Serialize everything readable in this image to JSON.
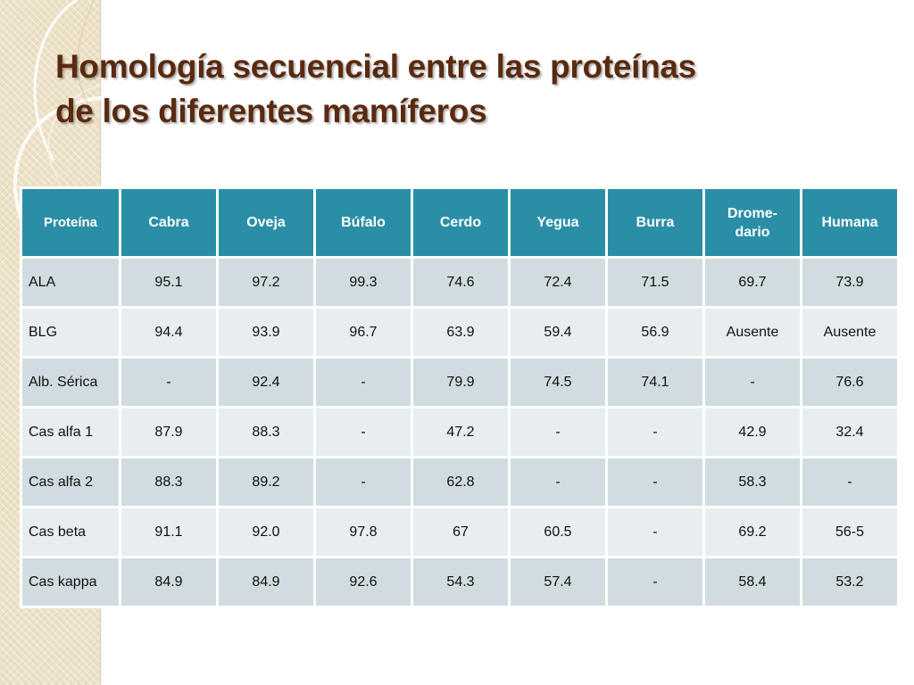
{
  "slide": {
    "title_line1": "Homología secuencial entre las proteínas",
    "title_line2": "de los diferentes mamíferos"
  },
  "table": {
    "headers": [
      "Proteína",
      "Cabra",
      "Oveja",
      "Búfalo",
      "Cerdo",
      "Yegua",
      "Burra",
      "Drome-dario",
      "Humana"
    ],
    "rows": [
      [
        "ALA",
        "95.1",
        "97.2",
        "99.3",
        "74.6",
        "72.4",
        "71.5",
        "69.7",
        "73.9"
      ],
      [
        "BLG",
        "94.4",
        "93.9",
        "96.7",
        "63.9",
        "59.4",
        "56.9",
        "Ausente",
        "Ausente"
      ],
      [
        "Alb. Sérica",
        "-",
        "92.4",
        "-",
        "79.9",
        "74.5",
        "74.1",
        "-",
        "76.6"
      ],
      [
        "Cas alfa 1",
        "87.9",
        "88.3",
        "-",
        "47.2",
        "-",
        "-",
        "42.9",
        "32.4"
      ],
      [
        "Cas alfa 2",
        "88.3",
        "89.2",
        "-",
        "62.8",
        "-",
        "-",
        "58.3",
        "-"
      ],
      [
        "Cas beta",
        "91.1",
        "92.0",
        "97.8",
        "67",
        "60.5",
        "-",
        "69.2",
        "56-5"
      ],
      [
        "Cas kappa",
        "84.9",
        "84.9",
        "92.6",
        "54.3",
        "57.4",
        "-",
        "58.4",
        "53.2"
      ]
    ]
  },
  "colors": {
    "header_bg": "#2a8ea6",
    "row_odd": "#d0dce0",
    "row_even": "#e8eef0",
    "title": "#5a2a10"
  }
}
